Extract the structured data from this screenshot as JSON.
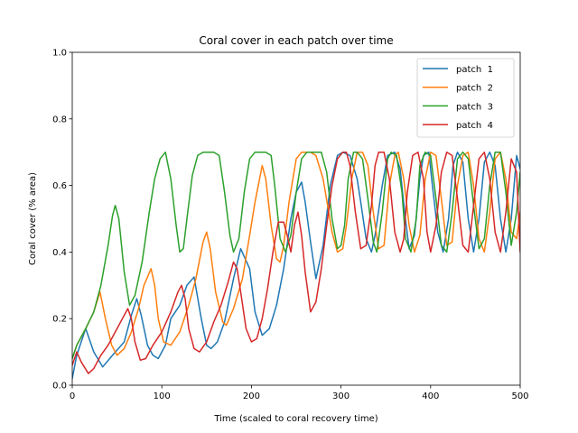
{
  "chart_data": {
    "type": "line",
    "title": "Coral cover in each patch over time",
    "xlabel": "Time (scaled to coral recovery time)",
    "ylabel": "Coral cover (% area)",
    "xlim": [
      0,
      500
    ],
    "ylim": [
      0,
      1.0
    ],
    "xticks": [
      0,
      100,
      200,
      300,
      400,
      500
    ],
    "yticks": [
      0.0,
      0.2,
      0.4,
      0.6,
      0.8,
      1.0
    ],
    "xtick_labels": [
      "0",
      "100",
      "200",
      "300",
      "400",
      "500"
    ],
    "ytick_labels": [
      "0.0",
      "0.2",
      "0.4",
      "0.6",
      "0.8",
      "1.0"
    ],
    "grid": false,
    "legend_position": "top-right",
    "series": [
      {
        "name": "patch  1",
        "color": "#1f77b4",
        "x": [
          0,
          5,
          15,
          24,
          34,
          45,
          58,
          66,
          72,
          77,
          84,
          90,
          96,
          104,
          110,
          120,
          128,
          136,
          144,
          150,
          155,
          162,
          170,
          180,
          188,
          198,
          204,
          212,
          220,
          228,
          236,
          244,
          250,
          256,
          260,
          266,
          272,
          280,
          288,
          296,
          302,
          310,
          318,
          322,
          328,
          334,
          338,
          346,
          352,
          360,
          366,
          371,
          376,
          382,
          388,
          392,
          398,
          402,
          408,
          414,
          420,
          425,
          430,
          436,
          442,
          448,
          454,
          460,
          466,
          472,
          478,
          484,
          490,
          496,
          500
        ],
        "y": [
          0.02,
          0.09,
          0.17,
          0.1,
          0.055,
          0.09,
          0.13,
          0.21,
          0.26,
          0.21,
          0.12,
          0.09,
          0.08,
          0.12,
          0.2,
          0.24,
          0.3,
          0.325,
          0.2,
          0.12,
          0.11,
          0.13,
          0.19,
          0.32,
          0.41,
          0.35,
          0.22,
          0.15,
          0.17,
          0.24,
          0.35,
          0.5,
          0.58,
          0.61,
          0.55,
          0.43,
          0.32,
          0.42,
          0.6,
          0.69,
          0.7,
          0.69,
          0.62,
          0.55,
          0.44,
          0.4,
          0.45,
          0.6,
          0.69,
          0.7,
          0.65,
          0.52,
          0.41,
          0.45,
          0.62,
          0.69,
          0.7,
          0.6,
          0.46,
          0.4,
          0.5,
          0.66,
          0.7,
          0.67,
          0.5,
          0.4,
          0.5,
          0.67,
          0.7,
          0.66,
          0.5,
          0.4,
          0.5,
          0.69,
          0.65
        ]
      },
      {
        "name": "patch  2",
        "color": "#ff7f0e",
        "x": [
          0,
          5,
          15,
          24,
          31,
          37,
          44,
          50,
          58,
          66,
          74,
          80,
          88,
          92,
          96,
          102,
          110,
          120,
          130,
          138,
          146,
          150,
          154,
          160,
          168,
          172,
          180,
          190,
          198,
          204,
          212,
          216,
          222,
          228,
          232,
          236,
          242,
          250,
          256,
          260,
          266,
          272,
          280,
          290,
          296,
          302,
          306,
          312,
          318,
          324,
          330,
          336,
          342,
          348,
          354,
          360,
          364,
          370,
          376,
          382,
          388,
          394,
          400,
          406,
          412,
          418,
          424,
          430,
          436,
          442,
          448,
          454,
          460,
          466,
          472,
          478,
          484,
          490,
          496,
          500
        ],
        "y": [
          0.08,
          0.12,
          0.17,
          0.22,
          0.28,
          0.2,
          0.12,
          0.09,
          0.11,
          0.16,
          0.23,
          0.3,
          0.35,
          0.3,
          0.2,
          0.13,
          0.12,
          0.16,
          0.24,
          0.32,
          0.43,
          0.46,
          0.41,
          0.28,
          0.19,
          0.18,
          0.23,
          0.32,
          0.45,
          0.55,
          0.66,
          0.62,
          0.48,
          0.38,
          0.37,
          0.42,
          0.55,
          0.68,
          0.7,
          0.7,
          0.7,
          0.69,
          0.62,
          0.46,
          0.4,
          0.41,
          0.48,
          0.62,
          0.7,
          0.7,
          0.66,
          0.52,
          0.41,
          0.42,
          0.6,
          0.69,
          0.7,
          0.62,
          0.48,
          0.4,
          0.45,
          0.62,
          0.7,
          0.69,
          0.56,
          0.42,
          0.43,
          0.6,
          0.69,
          0.7,
          0.6,
          0.44,
          0.4,
          0.52,
          0.68,
          0.7,
          0.62,
          0.46,
          0.44,
          0.52
        ]
      },
      {
        "name": "patch  3",
        "color": "#2ca02c",
        "x": [
          0,
          5,
          15,
          24,
          32,
          40,
          45,
          48,
          52,
          58,
          64,
          70,
          78,
          86,
          92,
          98,
          104,
          110,
          116,
          120,
          124,
          128,
          134,
          140,
          146,
          152,
          158,
          164,
          170,
          176,
          180,
          186,
          192,
          198,
          204,
          210,
          216,
          222,
          226,
          232,
          238,
          244,
          250,
          256,
          262,
          270,
          278,
          284,
          290,
          296,
          300,
          304,
          308,
          314,
          318,
          324,
          330,
          336,
          340,
          346,
          352,
          356,
          362,
          368,
          372,
          378,
          384,
          388,
          394,
          400,
          406,
          412,
          418,
          424,
          430,
          436,
          442,
          448,
          454,
          460,
          466,
          472,
          478,
          484,
          490,
          496,
          500
        ],
        "y": [
          0.08,
          0.12,
          0.17,
          0.22,
          0.3,
          0.42,
          0.51,
          0.54,
          0.5,
          0.34,
          0.24,
          0.27,
          0.37,
          0.52,
          0.62,
          0.68,
          0.7,
          0.62,
          0.48,
          0.4,
          0.41,
          0.5,
          0.63,
          0.69,
          0.7,
          0.7,
          0.7,
          0.69,
          0.58,
          0.45,
          0.4,
          0.44,
          0.58,
          0.68,
          0.7,
          0.7,
          0.7,
          0.69,
          0.6,
          0.44,
          0.4,
          0.45,
          0.58,
          0.68,
          0.7,
          0.7,
          0.7,
          0.64,
          0.5,
          0.41,
          0.42,
          0.48,
          0.62,
          0.7,
          0.7,
          0.68,
          0.56,
          0.43,
          0.4,
          0.52,
          0.68,
          0.7,
          0.69,
          0.58,
          0.44,
          0.4,
          0.5,
          0.66,
          0.7,
          0.69,
          0.56,
          0.42,
          0.4,
          0.52,
          0.68,
          0.7,
          0.68,
          0.54,
          0.41,
          0.44,
          0.6,
          0.7,
          0.7,
          0.58,
          0.42,
          0.52,
          0.64
        ]
      },
      {
        "name": "patch  4",
        "color": "#d62728",
        "x": [
          0,
          5,
          10,
          18,
          24,
          32,
          40,
          48,
          56,
          62,
          66,
          70,
          76,
          82,
          90,
          100,
          110,
          118,
          122,
          126,
          130,
          136,
          142,
          150,
          158,
          166,
          174,
          180,
          184,
          188,
          194,
          200,
          206,
          212,
          218,
          224,
          230,
          236,
          240,
          244,
          248,
          252,
          256,
          260,
          266,
          272,
          278,
          284,
          290,
          296,
          302,
          306,
          310,
          316,
          322,
          328,
          334,
          338,
          342,
          348,
          354,
          360,
          366,
          370,
          374,
          380,
          386,
          392,
          396,
          400,
          406,
          412,
          418,
          424,
          430,
          436,
          442,
          448,
          454,
          460,
          466,
          472,
          478,
          484,
          490,
          496,
          500
        ],
        "y": [
          0.06,
          0.1,
          0.07,
          0.035,
          0.05,
          0.09,
          0.12,
          0.16,
          0.2,
          0.23,
          0.2,
          0.13,
          0.075,
          0.08,
          0.12,
          0.16,
          0.22,
          0.28,
          0.3,
          0.26,
          0.17,
          0.11,
          0.1,
          0.13,
          0.19,
          0.24,
          0.31,
          0.37,
          0.35,
          0.28,
          0.17,
          0.13,
          0.14,
          0.2,
          0.29,
          0.4,
          0.49,
          0.49,
          0.45,
          0.4,
          0.48,
          0.52,
          0.45,
          0.34,
          0.22,
          0.25,
          0.35,
          0.48,
          0.6,
          0.68,
          0.7,
          0.7,
          0.66,
          0.52,
          0.41,
          0.42,
          0.54,
          0.66,
          0.7,
          0.7,
          0.62,
          0.46,
          0.4,
          0.44,
          0.58,
          0.69,
          0.7,
          0.62,
          0.46,
          0.4,
          0.48,
          0.64,
          0.7,
          0.69,
          0.56,
          0.42,
          0.4,
          0.54,
          0.68,
          0.7,
          0.62,
          0.46,
          0.4,
          0.52,
          0.68,
          0.64,
          0.4
        ]
      }
    ]
  }
}
